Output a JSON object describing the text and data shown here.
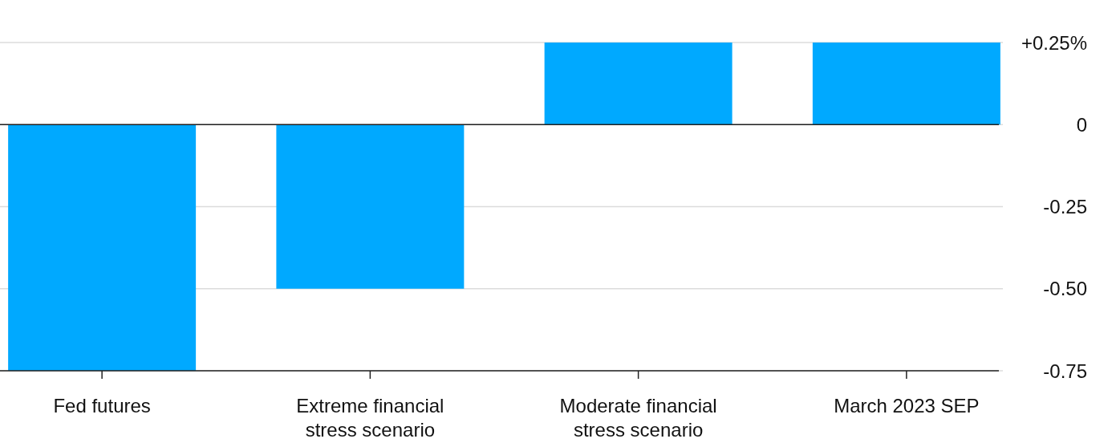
{
  "chart_data": {
    "type": "bar",
    "categories": [
      "Fed futures",
      "Extreme financial stress scenario",
      "Moderate financial stress scenario",
      "March 2023 SEP"
    ],
    "values": [
      -0.75,
      -0.5,
      0.25,
      0.25
    ],
    "color": "#00a9ff",
    "ylim": [
      -0.75,
      0.25
    ],
    "yticks": [
      {
        "value": 0.25,
        "label": "+0.25%"
      },
      {
        "value": 0,
        "label": "0"
      },
      {
        "value": -0.25,
        "label": "-0.25"
      },
      {
        "value": -0.5,
        "label": "-0.50"
      },
      {
        "value": -0.75,
        "label": "-0.75"
      }
    ],
    "grid": "y"
  }
}
